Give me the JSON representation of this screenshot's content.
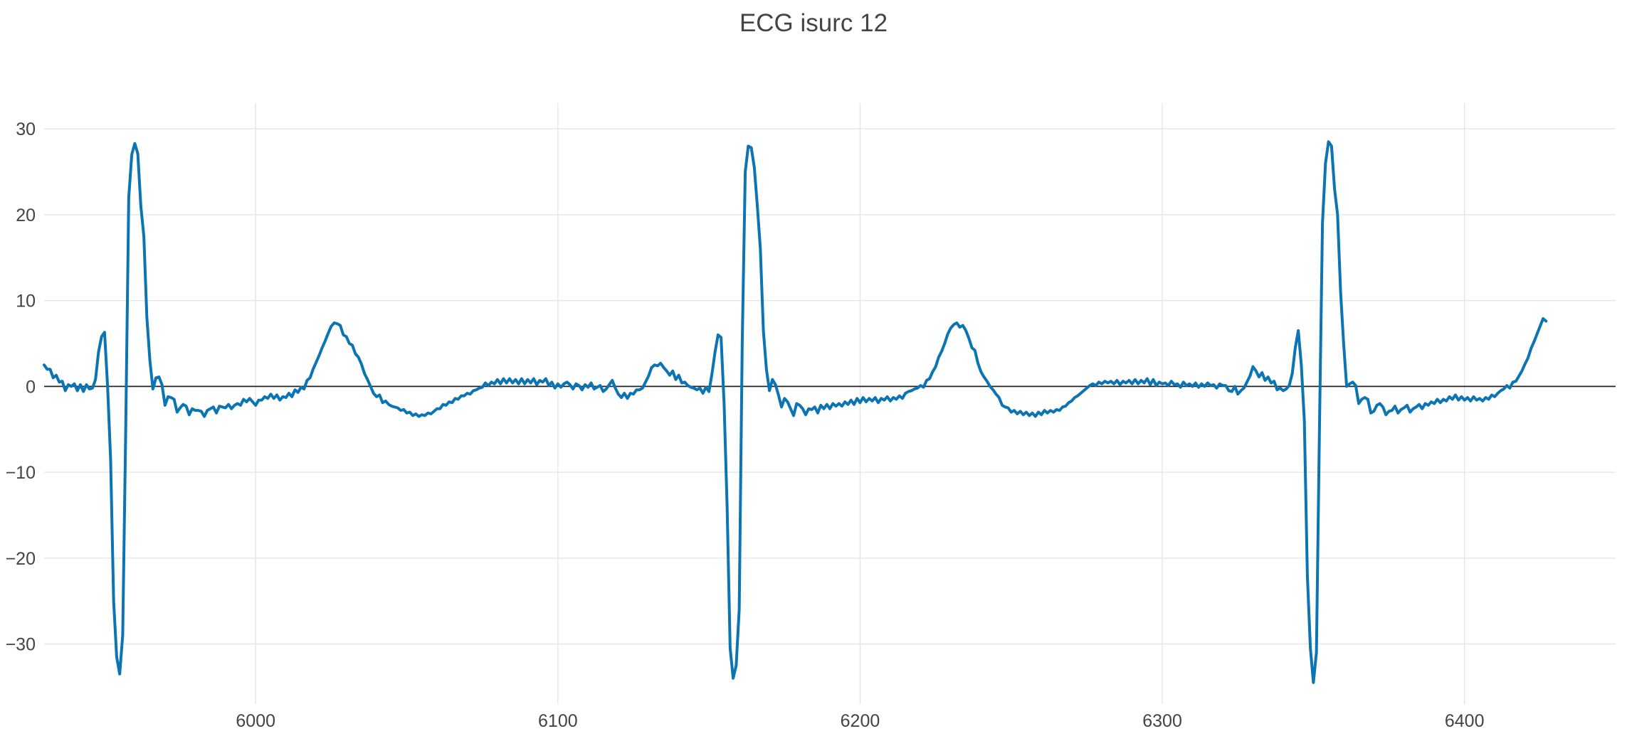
{
  "chart_data": {
    "type": "line",
    "title": "ECG isurc 12",
    "xlabel": "",
    "ylabel": "",
    "xlim": [
      5930,
      6450
    ],
    "ylim": [
      -37,
      33
    ],
    "x_ticks": [
      6000,
      6100,
      6200,
      6300,
      6400
    ],
    "y_ticks": [
      30,
      20,
      10,
      0,
      -10,
      -20,
      -30
    ],
    "y_tick_labels": [
      "30",
      "20",
      "10",
      "0",
      "−10",
      "−20",
      "−30"
    ],
    "grid": true,
    "zero_line": true,
    "legend": "none",
    "colors": {
      "trace": "#0b74b2",
      "grid": "#e6e6e6",
      "zero_line": "#222222",
      "text": "#444444"
    },
    "series": [
      {
        "x_start": 5930,
        "x_step": 1,
        "values": [
          2.5,
          2.0,
          2.0,
          1.0,
          1.3,
          0.5,
          0.6,
          -0.5,
          0.2,
          0,
          0.3,
          -0.5,
          0.2,
          -0.6,
          0.2,
          -0.3,
          -0.2,
          0.8,
          4.0,
          5.8,
          6.3,
          0,
          -8.5,
          -25,
          -31.5,
          -33.5,
          -29,
          -5,
          22,
          27,
          28.3,
          27.1,
          21,
          17.5,
          8,
          3,
          -0.3,
          1,
          1.1,
          0.2,
          -2.2,
          -1.2,
          -1.3,
          -1.5,
          -3,
          -2.5,
          -2.1,
          -2.3,
          -3.3,
          -2.6,
          -2.8,
          -2.8,
          -2.9,
          -3.5,
          -2.8,
          -2.6,
          -2.4,
          -3.1,
          -2.3,
          -2.4,
          -2.5,
          -2.1,
          -2.6,
          -2.2,
          -2.0,
          -2.2,
          -1.5,
          -1.8,
          -1.4,
          -1.8,
          -2.2,
          -1.6,
          -1.6,
          -1.2,
          -1.4,
          -0.9,
          -1.4,
          -1.0,
          -1.6,
          -1.2,
          -1.3,
          -0.8,
          -1.2,
          -0.4,
          -0.7,
          -0.1,
          -0.3,
          0.7,
          1.0,
          2.0,
          2.8,
          3.6,
          4.5,
          5.3,
          6.2,
          7.0,
          7.4,
          7.3,
          7.1,
          6.0,
          5.8,
          5.0,
          4.8,
          3.8,
          3.4,
          2.6,
          1.5,
          0.8,
          0,
          -0.8,
          -1.2,
          -1.0,
          -1.9,
          -1.7,
          -2.1,
          -2.3,
          -2.4,
          -2.5,
          -2.8,
          -2.7,
          -3.1,
          -3.0,
          -3.4,
          -3.2,
          -3.5,
          -3.3,
          -3.4,
          -3.1,
          -3.2,
          -2.9,
          -2.6,
          -2.6,
          -2.1,
          -2.2,
          -1.8,
          -1.9,
          -1.4,
          -1.5,
          -1.1,
          -1.1,
          -0.8,
          -0.9,
          -0.5,
          -0.4,
          -0.2,
          -0.1,
          0.4,
          0.1,
          0.5,
          0.3,
          0.8,
          0.3,
          0.9,
          0.4,
          0.9,
          0.4,
          0.8,
          0.3,
          0.9,
          0.3,
          0.8,
          0.4,
          0.9,
          0.2,
          0.7,
          0.5,
          0.9,
          0.1,
          0.5,
          -0.2,
          0.3,
          -0.1,
          0.3,
          0.5,
          0.2,
          -0.3,
          0.3,
          0.1,
          -0.4,
          0.2,
          -0.1,
          0.4,
          -0.3,
          -0.1,
          0.1,
          -0.6,
          -0.3,
          0.2,
          0.7,
          -0.2,
          -0.9,
          -1.3,
          -0.8,
          -1.4,
          -0.8,
          -0.9,
          -0.4,
          -0.4,
          -0.2,
          0.5,
          1.2,
          2.2,
          2.5,
          2.4,
          2.7,
          2.2,
          1.8,
          1.3,
          1.8,
          0.8,
          1.3,
          0.4,
          0.5,
          0.1,
          -0.1,
          -0.2,
          -0.4,
          -0.2,
          -0.8,
          -0.1,
          -0.6,
          1.5,
          4.0,
          6.0,
          5.7,
          -2,
          -14,
          -30.5,
          -34,
          -32.5,
          -26,
          5,
          25,
          28,
          27.8,
          25.5,
          21,
          16,
          6.5,
          2,
          -0.5,
          0.8,
          0.2,
          -1,
          -2.4,
          -1.4,
          -1.8,
          -2.6,
          -3.4,
          -2.0,
          -2.2,
          -2.6,
          -3.3,
          -2.6,
          -2.7,
          -2.4,
          -3.1,
          -2.2,
          -2.6,
          -2.1,
          -2.6,
          -2.0,
          -2.3,
          -2.0,
          -2.3,
          -1.8,
          -2.1,
          -1.6,
          -2.1,
          -1.4,
          -1.9,
          -1.3,
          -1.8,
          -1.4,
          -1.7,
          -1.3,
          -1.9,
          -1.4,
          -1.6,
          -1.2,
          -1.7,
          -1.3,
          -1.5,
          -1.1,
          -1.4,
          -0.8,
          -0.6,
          -0.5,
          -0.3,
          -0.2,
          0.1,
          -0.1,
          0.7,
          0.9,
          1.7,
          2.3,
          3.4,
          4.1,
          5.0,
          6.1,
          6.8,
          7.2,
          7.4,
          6.9,
          7.1,
          6.5,
          5.6,
          4.5,
          4.2,
          2.7,
          1.7,
          1.1,
          0.6,
          0,
          -0.4,
          -0.9,
          -1.3,
          -2.2,
          -2.4,
          -2.5,
          -3.0,
          -2.8,
          -3.2,
          -2.9,
          -3.3,
          -3.0,
          -3.4,
          -3.1,
          -3.5,
          -3.0,
          -3.3,
          -2.8,
          -3.1,
          -2.8,
          -3.0,
          -2.7,
          -2.8,
          -2.4,
          -2.3,
          -1.9,
          -1.7,
          -1.3,
          -1.1,
          -0.8,
          -0.5,
          -0.2,
          0.1,
          0.3,
          0.1,
          0.5,
          0.3,
          0.6,
          0.4,
          0.6,
          0.3,
          0.7,
          0.2,
          0.6,
          0.4,
          0.7,
          0.3,
          0.8,
          0.3,
          0.7,
          0.4,
          0.9,
          0.2,
          0.8,
          0.1,
          0.5,
          0.3,
          0.4,
          0.1,
          0.6,
          0.2,
          0.3,
          -0.1,
          0.5,
          0.1,
          0.3,
          0,
          0.4,
          -0.1,
          0.3,
          0,
          0.4,
          0.1,
          0.2,
          -0.2,
          0.3,
          0.1,
          0.1,
          -0.5,
          -0.6,
          0,
          -0.9,
          -0.5,
          -0.2,
          0.5,
          1.2,
          2.3,
          1.8,
          1.1,
          1.6,
          0.7,
          1.1,
          0.4,
          0.6,
          -0.4,
          -0.2,
          -0.5,
          -0.3,
          0.1,
          1.5,
          4.5,
          6.5,
          2.5,
          -4,
          -22,
          -30.5,
          -34.5,
          -31,
          -5,
          19,
          26,
          28.5,
          28,
          23,
          20,
          11,
          5,
          0,
          0.3,
          0.5,
          0.1,
          -2,
          -1.5,
          -1.3,
          -1.5,
          -3.1,
          -2.9,
          -2.2,
          -2.0,
          -2.4,
          -3.3,
          -2.9,
          -2.8,
          -2.3,
          -3.1,
          -2.7,
          -2.5,
          -2.2,
          -3.0,
          -2.6,
          -2.4,
          -2.1,
          -2.6,
          -2.0,
          -2.2,
          -1.8,
          -2.0,
          -1.5,
          -1.9,
          -1.5,
          -1.7,
          -1.2,
          -1.5,
          -1.0,
          -1.6,
          -1.2,
          -1.6,
          -1.3,
          -1.7,
          -1.2,
          -1.6,
          -1.4,
          -1.7,
          -1.3,
          -1.5,
          -1.0,
          -1.2,
          -0.8,
          -0.5,
          -0.3,
          0.1,
          -0.2,
          0.5,
          0.6,
          1.2,
          1.8,
          2.6,
          3.3,
          4.4,
          5.2,
          6.1,
          7.0,
          7.9,
          7.6
        ]
      }
    ]
  }
}
